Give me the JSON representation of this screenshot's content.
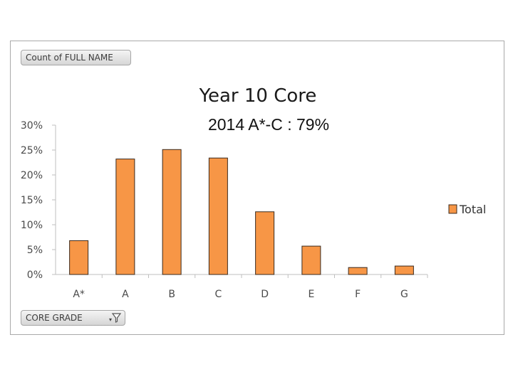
{
  "pivot": {
    "value_field": "Count of FULL NAME",
    "row_field": "CORE GRADE",
    "filter_icon": "filter-icon"
  },
  "chart_data": {
    "type": "bar",
    "title": "Year 10 Core",
    "subtitle": "2014 A*-C : 79%",
    "categories": [
      "A*",
      "A",
      "B",
      "C",
      "D",
      "E",
      "F",
      "G"
    ],
    "series": [
      {
        "name": "Total",
        "values": [
          6.8,
          23.2,
          25.1,
          23.4,
          12.6,
          5.7,
          1.4,
          1.7
        ],
        "color": "#f79646"
      }
    ],
    "ylim": [
      0,
      30
    ],
    "yticks": [
      "0%",
      "5%",
      "10%",
      "15%",
      "20%",
      "25%",
      "30%"
    ],
    "ytick_values": [
      0,
      5,
      10,
      15,
      20,
      25,
      30
    ],
    "grid": false,
    "legend_position": "right"
  }
}
